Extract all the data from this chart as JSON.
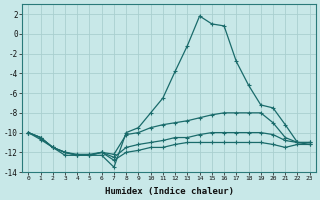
{
  "xlabel": "Humidex (Indice chaleur)",
  "xlim": [
    -0.5,
    23.5
  ],
  "ylim": [
    -14,
    3
  ],
  "yticks": [
    2,
    0,
    -2,
    -4,
    -6,
    -8,
    -10,
    -12,
    -14
  ],
  "xticks": [
    0,
    1,
    2,
    3,
    4,
    5,
    6,
    7,
    8,
    9,
    10,
    11,
    12,
    13,
    14,
    15,
    16,
    17,
    18,
    19,
    20,
    21,
    22,
    23
  ],
  "background_color": "#c8e8e8",
  "grid_color": "#aacfcf",
  "line_color": "#1a6b6b",
  "lines": [
    {
      "x": [
        0,
        1,
        2,
        3,
        4,
        5,
        6,
        7,
        8,
        9,
        10,
        11,
        12,
        13,
        14,
        15,
        16,
        17,
        18,
        19,
        20,
        21,
        22,
        23
      ],
      "y": [
        -10,
        -10.7,
        -11.5,
        -12.3,
        -12.3,
        -12.3,
        -12.3,
        -13.5,
        -10.0,
        -9.5,
        -8.0,
        -6.5,
        -3.8,
        -1.2,
        1.8,
        1.0,
        0.8,
        -2.8,
        -5.2,
        -7.2,
        -7.5,
        -9.2,
        -11.0,
        -11.2
      ]
    },
    {
      "x": [
        0,
        1,
        2,
        3,
        4,
        5,
        6,
        7,
        8,
        9,
        10,
        11,
        12,
        13,
        14,
        15,
        16,
        17,
        18,
        19,
        20,
        21,
        22,
        23
      ],
      "y": [
        -10.0,
        -10.5,
        -11.5,
        -12.0,
        -12.2,
        -12.2,
        -12.0,
        -12.2,
        -10.2,
        -10.0,
        -9.5,
        -9.2,
        -9.0,
        -8.8,
        -8.5,
        -8.2,
        -8.0,
        -8.0,
        -8.0,
        -8.0,
        -9.0,
        -10.5,
        -11.0,
        -11.0
      ]
    },
    {
      "x": [
        0,
        1,
        2,
        3,
        4,
        5,
        6,
        7,
        8,
        9,
        10,
        11,
        12,
        13,
        14,
        15,
        16,
        17,
        18,
        19,
        20,
        21,
        22,
        23
      ],
      "y": [
        -10.0,
        -10.5,
        -11.5,
        -12.0,
        -12.3,
        -12.3,
        -12.0,
        -12.5,
        -11.5,
        -11.2,
        -11.0,
        -10.8,
        -10.5,
        -10.5,
        -10.2,
        -10.0,
        -10.0,
        -10.0,
        -10.0,
        -10.0,
        -10.2,
        -10.8,
        -11.0,
        -11.0
      ]
    },
    {
      "x": [
        0,
        1,
        2,
        3,
        4,
        5,
        6,
        7,
        8,
        9,
        10,
        11,
        12,
        13,
        14,
        15,
        16,
        17,
        18,
        19,
        20,
        21,
        22,
        23
      ],
      "y": [
        -10.0,
        -10.5,
        -11.5,
        -12.0,
        -12.3,
        -12.3,
        -12.0,
        -12.8,
        -12.0,
        -11.8,
        -11.5,
        -11.5,
        -11.2,
        -11.0,
        -11.0,
        -11.0,
        -11.0,
        -11.0,
        -11.0,
        -11.0,
        -11.2,
        -11.5,
        -11.2,
        -11.2
      ]
    }
  ]
}
